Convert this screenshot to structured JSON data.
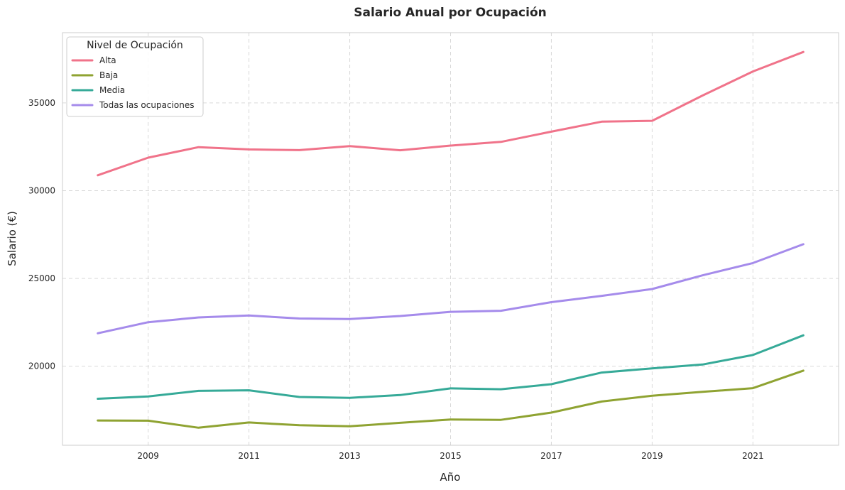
{
  "chart_data": {
    "type": "line",
    "title": "Salario Anual por Ocupación",
    "xlabel": "Año",
    "ylabel": "Salario (€)",
    "x": [
      2008,
      2009,
      2010,
      2011,
      2012,
      2013,
      2014,
      2015,
      2016,
      2017,
      2018,
      2019,
      2020,
      2021,
      2022
    ],
    "xlim": [
      2007.3,
      2022.7
    ],
    "ylim": [
      15500,
      39000
    ],
    "xticks": [
      2009,
      2011,
      2013,
      2015,
      2017,
      2019,
      2021
    ],
    "yticks": [
      20000,
      25000,
      30000,
      35000
    ],
    "grid": true,
    "legend": {
      "title": "Nivel de Ocupación",
      "position": "top-left"
    },
    "series": [
      {
        "name": "Alta",
        "color": "#f0738a",
        "values": [
          30880,
          31880,
          32480,
          32350,
          32310,
          32540,
          32300,
          32570,
          32780,
          33360,
          33930,
          33980,
          35420,
          36790,
          37900
        ]
      },
      {
        "name": "Baja",
        "color": "#8fa332",
        "values": [
          16910,
          16900,
          16500,
          16800,
          16640,
          16580,
          16780,
          16970,
          16950,
          17360,
          17990,
          18320,
          18540,
          18750,
          19750
        ]
      },
      {
        "name": "Media",
        "color": "#36aa98",
        "values": [
          18150,
          18280,
          18600,
          18630,
          18250,
          18200,
          18360,
          18740,
          18690,
          18980,
          19640,
          19880,
          20100,
          20640,
          21760
        ]
      },
      {
        "name": "Todas las ocupaciones",
        "color": "#a58beb",
        "values": [
          21880,
          22510,
          22780,
          22890,
          22720,
          22690,
          22860,
          23100,
          23160,
          23650,
          24010,
          24400,
          25180,
          25880,
          26950
        ]
      }
    ]
  }
}
